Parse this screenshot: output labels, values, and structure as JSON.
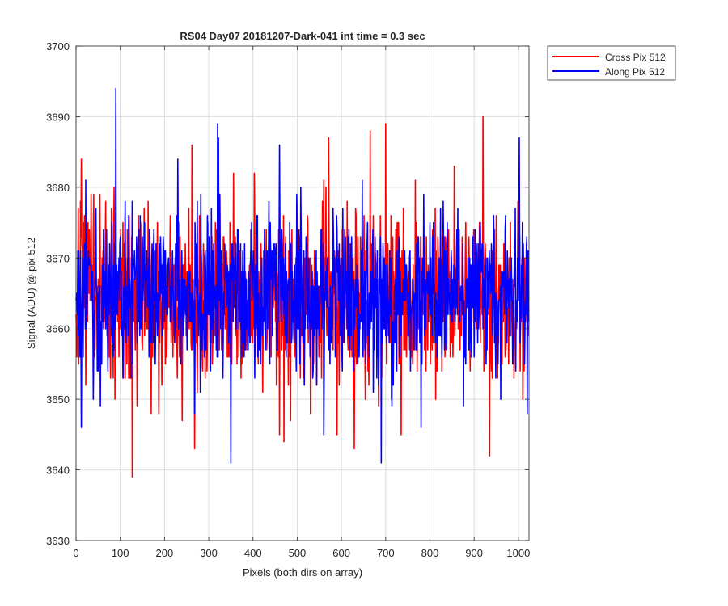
{
  "chart_data": {
    "type": "line",
    "title": "RS04 Day07 20181207-Dark-041 int time = 0.3 sec",
    "xlabel": "Pixels (both dirs on array)",
    "ylabel": "Signal (ADU) @ pix 512",
    "xlim": [
      0,
      1024
    ],
    "ylim": [
      3630,
      3700
    ],
    "xticks": [
      0,
      100,
      200,
      300,
      400,
      500,
      600,
      700,
      800,
      900,
      1000
    ],
    "yticks": [
      3630,
      3640,
      3650,
      3660,
      3670,
      3680,
      3690,
      3700
    ],
    "grid": true,
    "legend_position": "outside-top-right",
    "series": [
      {
        "name": "Cross Pix 512",
        "color": "#ff0000",
        "noise": {
          "n_points": 1024,
          "mean": 3665,
          "sd": 6,
          "seed": 7,
          "extremes": [
            {
              "x": 2,
              "y": 3656
            },
            {
              "x": 12,
              "y": 3684
            },
            {
              "x": 88,
              "y": 3650
            },
            {
              "x": 127,
              "y": 3639
            },
            {
              "x": 170,
              "y": 3648
            },
            {
              "x": 240,
              "y": 3647
            },
            {
              "x": 262,
              "y": 3686
            },
            {
              "x": 268,
              "y": 3643
            },
            {
              "x": 403,
              "y": 3682
            },
            {
              "x": 460,
              "y": 3645
            },
            {
              "x": 470,
              "y": 3644
            },
            {
              "x": 565,
              "y": 3680
            },
            {
              "x": 571,
              "y": 3687
            },
            {
              "x": 590,
              "y": 3645
            },
            {
              "x": 629,
              "y": 3643
            },
            {
              "x": 665,
              "y": 3688
            },
            {
              "x": 700,
              "y": 3689
            },
            {
              "x": 735,
              "y": 3645
            },
            {
              "x": 920,
              "y": 3690
            },
            {
              "x": 935,
              "y": 3642
            },
            {
              "x": 1010,
              "y": 3650
            }
          ]
        }
      },
      {
        "name": "Along Pix 512",
        "color": "#0000ff",
        "noise": {
          "n_points": 1024,
          "mean": 3665,
          "sd": 5.5,
          "seed": 21,
          "extremes": [
            {
              "x": 12,
              "y": 3646
            },
            {
              "x": 22,
              "y": 3681
            },
            {
              "x": 55,
              "y": 3649
            },
            {
              "x": 90,
              "y": 3694
            },
            {
              "x": 165,
              "y": 3656
            },
            {
              "x": 230,
              "y": 3684
            },
            {
              "x": 268,
              "y": 3648
            },
            {
              "x": 320,
              "y": 3689
            },
            {
              "x": 322,
              "y": 3687
            },
            {
              "x": 350,
              "y": 3641
            },
            {
              "x": 460,
              "y": 3686
            },
            {
              "x": 560,
              "y": 3645
            },
            {
              "x": 690,
              "y": 3641
            },
            {
              "x": 780,
              "y": 3646
            },
            {
              "x": 830,
              "y": 3678
            },
            {
              "x": 1002,
              "y": 3687
            },
            {
              "x": 1020,
              "y": 3648
            }
          ]
        }
      }
    ]
  }
}
